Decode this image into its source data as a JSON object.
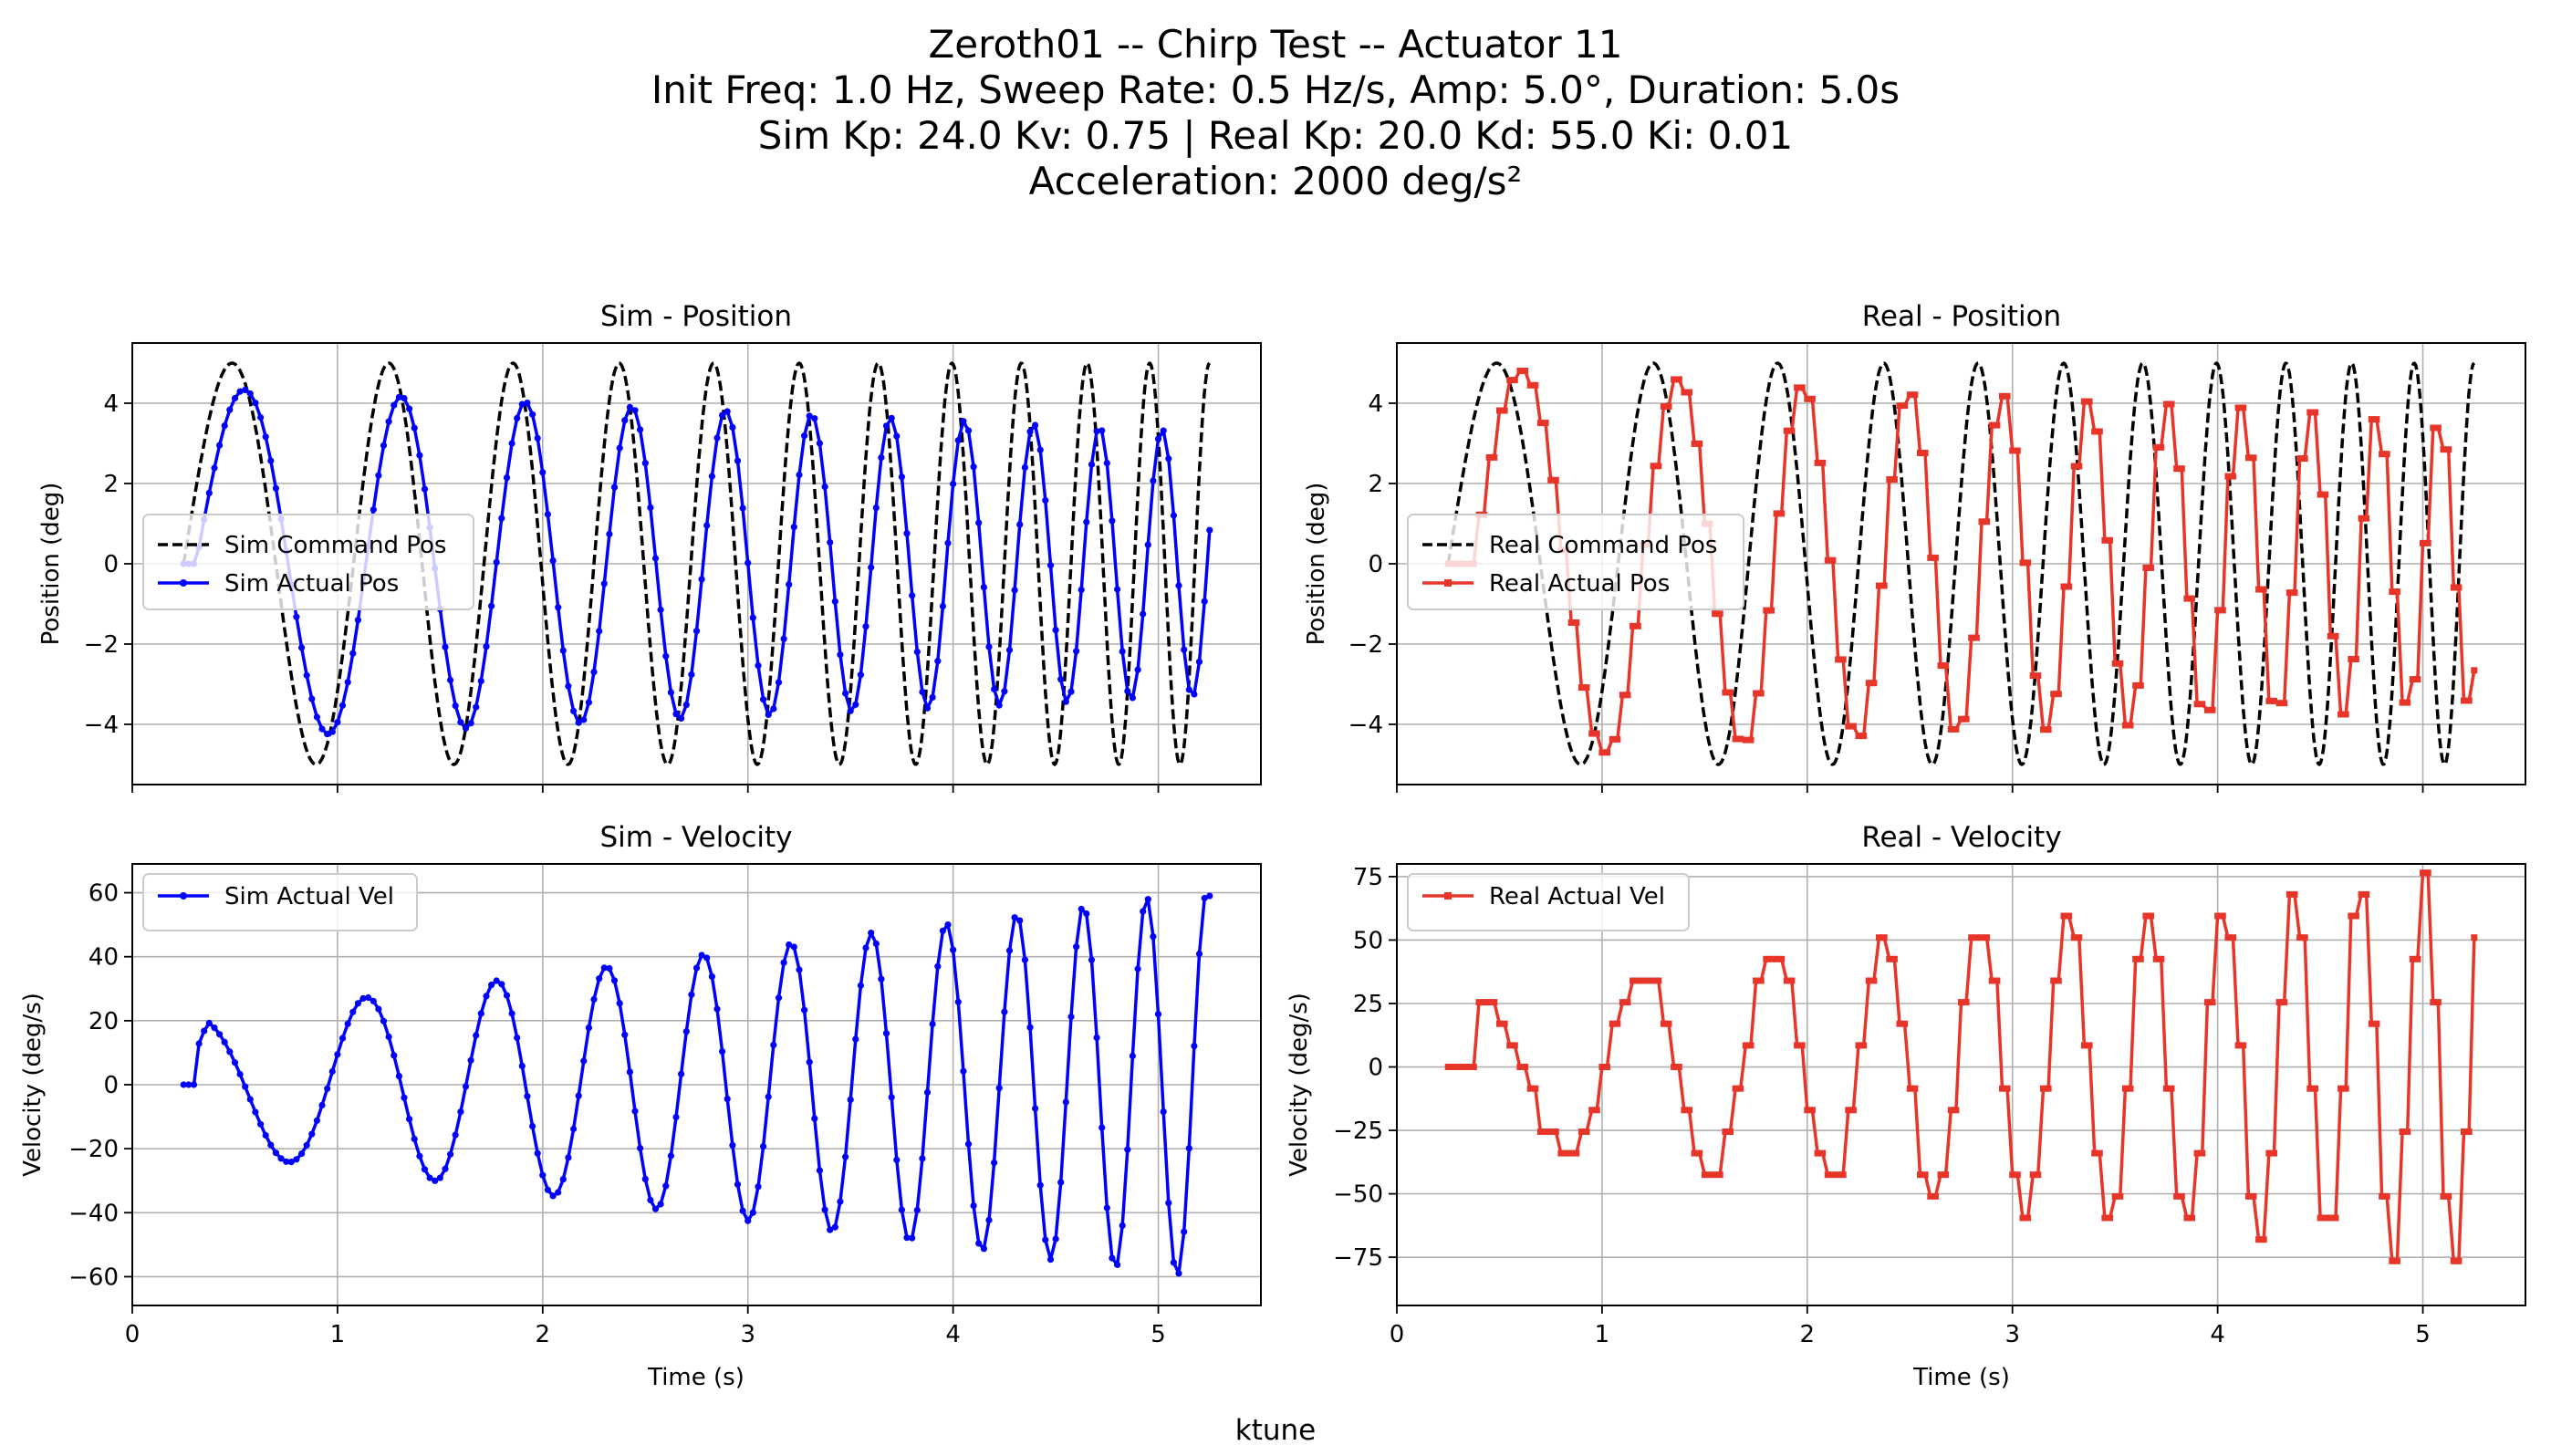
{
  "figure": {
    "title_lines": [
      "Zeroth01 -- Chirp Test -- Actuator 11",
      "Init Freq: 1.0 Hz, Sweep Rate: 0.5 Hz/s, Amp: 5.0°, Duration: 5.0s",
      "Sim Kp: 24.0 Kv: 0.75 | Real Kp: 20.0 Kd: 55.0 Ki: 0.01",
      "Acceleration: 2000 deg/s²"
    ],
    "footer": "ktune",
    "colors": {
      "command": "#000000",
      "sim": "#0000ff",
      "real": "#e8352a",
      "grid": "#b0b0b0"
    }
  },
  "chirp": {
    "t_start": 0.25,
    "t_end": 5.25,
    "init_freq_hz": 1.0,
    "sweep_rate_hz_per_s": 0.5,
    "amplitude_deg": 5.0
  },
  "chart_data": [
    {
      "id": "sim-position",
      "type": "line",
      "title": "Sim - Position",
      "xlabel": "",
      "ylabel": "Position (deg)",
      "xlim": [
        0,
        5.5
      ],
      "ylim": [
        -5.5,
        5.5
      ],
      "xticks": [
        0,
        1,
        2,
        3,
        4,
        5
      ],
      "xtick_labels": [
        "",
        "",
        "",
        "",
        "",
        ""
      ],
      "yticks": [
        4,
        2,
        0,
        -2,
        -4
      ],
      "ytick_labels": [
        "4",
        "2",
        "0",
        "−2",
        "−4"
      ],
      "grid": true,
      "legend_loc": "center-left",
      "series": [
        {
          "name": "Sim Command Pos",
          "style": "dashed",
          "color": "#000000",
          "marker": "none",
          "gen": "cmd",
          "delay": 0,
          "amp": [
            5,
            5
          ]
        },
        {
          "name": "Sim Actual Pos",
          "style": "solid",
          "color": "#0000ff",
          "marker": "circle",
          "gen": "pos",
          "delay": 0.06,
          "amp": [
            4.4,
            3.3
          ],
          "step": 0.025
        }
      ]
    },
    {
      "id": "real-position",
      "type": "line",
      "title": "Real - Position",
      "xlabel": "",
      "ylabel": "Position (deg)",
      "xlim": [
        0,
        5.5
      ],
      "ylim": [
        -5.5,
        5.5
      ],
      "xticks": [
        0,
        1,
        2,
        3,
        4,
        5
      ],
      "xtick_labels": [
        "",
        "",
        "",
        "",
        "",
        ""
      ],
      "yticks": [
        4,
        2,
        0,
        -2,
        -4
      ],
      "ytick_labels": [
        "4",
        "2",
        "0",
        "−2",
        "−4"
      ],
      "grid": true,
      "legend_loc": "center-left",
      "series": [
        {
          "name": "Real Command Pos",
          "style": "dashed",
          "color": "#000000",
          "marker": "none",
          "gen": "cmd",
          "delay": 0,
          "amp": [
            5,
            5
          ]
        },
        {
          "name": "Real Actual Pos",
          "style": "solid",
          "color": "#e8352a",
          "marker": "square",
          "gen": "pos",
          "delay": 0.11,
          "amp": [
            4.9,
            3.6
          ],
          "step": 0.025,
          "hold": 2
        }
      ]
    },
    {
      "id": "sim-velocity",
      "type": "line",
      "title": "Sim - Velocity",
      "xlabel": "Time (s)",
      "ylabel": "Velocity (deg/s)",
      "xlim": [
        0,
        5.5
      ],
      "ylim": [
        -69,
        69
      ],
      "xticks": [
        0,
        1,
        2,
        3,
        4,
        5
      ],
      "xtick_labels": [
        "0",
        "1",
        "2",
        "3",
        "4",
        "5"
      ],
      "yticks": [
        60,
        40,
        20,
        0,
        -20,
        -40,
        -60
      ],
      "ytick_labels": [
        "60",
        "40",
        "20",
        "0",
        "−20",
        "−40",
        "−60"
      ],
      "grid": true,
      "legend_loc": "upper-left",
      "series": [
        {
          "name": "Sim Actual Vel",
          "style": "solid",
          "color": "#0000ff",
          "marker": "circle",
          "gen": "vel",
          "delay": 0.06,
          "amp": [
            20,
            61
          ],
          "step": 0.025,
          "offset": 10
        }
      ]
    },
    {
      "id": "real-velocity",
      "type": "line",
      "title": "Real - Velocity",
      "xlabel": "Time (s)",
      "ylabel": "Velocity (deg/s)",
      "xlim": [
        0,
        5.5
      ],
      "ylim": [
        -94,
        80
      ],
      "xticks": [
        0,
        1,
        2,
        3,
        4,
        5
      ],
      "xtick_labels": [
        "0",
        "1",
        "2",
        "3",
        "4",
        "5"
      ],
      "yticks": [
        75,
        50,
        25,
        0,
        -25,
        -50,
        -75
      ],
      "ytick_labels": [
        "75",
        "50",
        "25",
        "0",
        "−25",
        "−50",
        "−75"
      ],
      "grid": true,
      "legend_loc": "upper-left",
      "series": [
        {
          "name": "Real Actual Vel",
          "style": "solid",
          "color": "#e8352a",
          "marker": "square",
          "gen": "vel",
          "delay": 0.11,
          "amp": [
            28,
            78
          ],
          "step": 0.025,
          "hold": 2,
          "quant": 8.5,
          "offset": 6
        }
      ]
    }
  ]
}
